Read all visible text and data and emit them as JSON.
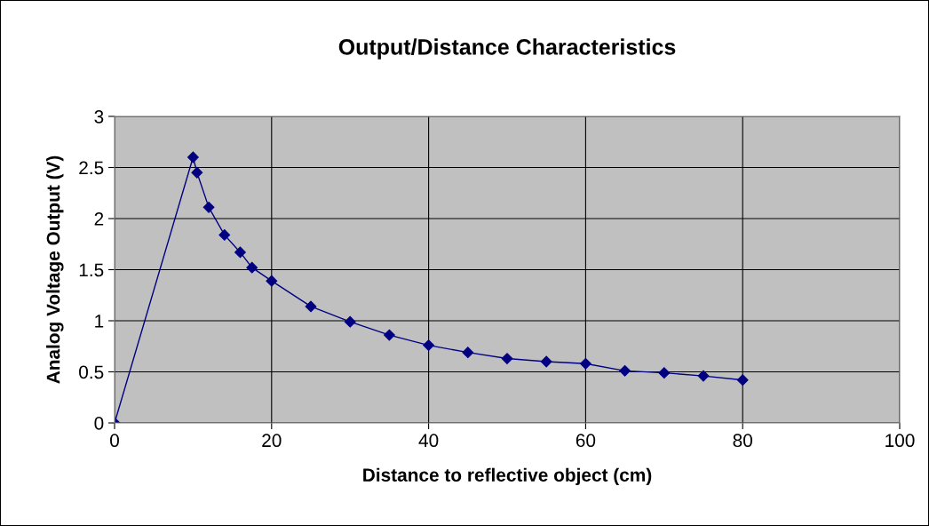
{
  "chart_data": {
    "type": "line",
    "title": "Output/Distance Characteristics",
    "xlabel": "Distance to reflective object (cm)",
    "ylabel": "Analog Voltage Output (V)",
    "x": [
      0,
      10,
      10.5,
      12,
      14,
      16,
      17.5,
      20,
      25,
      30,
      35,
      40,
      45,
      50,
      55,
      60,
      65,
      70,
      75,
      80
    ],
    "series": [
      {
        "color": "#000080",
        "values": [
          0,
          2.6,
          2.45,
          2.11,
          1.84,
          1.67,
          1.52,
          1.39,
          1.14,
          0.99,
          0.86,
          0.76,
          0.69,
          0.63,
          0.6,
          0.58,
          0.51,
          0.49,
          0.46,
          0.42
        ]
      }
    ],
    "xlim": [
      0,
      100
    ],
    "xticks": [
      0,
      20,
      40,
      60,
      80,
      100
    ],
    "ylim": [
      0,
      3
    ],
    "yticks": [
      0,
      0.5,
      1,
      1.5,
      2,
      2.5,
      3
    ],
    "grid": true,
    "marker": "diamond",
    "line_style": "solid"
  }
}
